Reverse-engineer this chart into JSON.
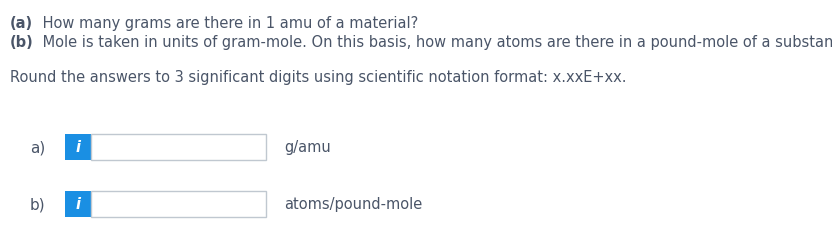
{
  "line_a_bold": "(a)",
  "line_a_text": " How many grams are there in 1 amu of a material?",
  "line_b_bold": "(b)",
  "line_b_text": " Mole is taken in units of gram-mole. On this basis, how many atoms are there in a pound-mole of a substance?",
  "instruction": "Round the answers to 3 significant digits using scientific notation format: x.xxE+xx.",
  "label_a": "a)",
  "label_b": "b)",
  "unit_a": "g/amu",
  "unit_b": "atoms/pound-mole",
  "text_color": "#4a5568",
  "blue_color": "#1a8fe3",
  "box_border_color": "#c0c8d0",
  "background_color": "#ffffff",
  "font_size_main": 10.5,
  "font_size_label": 11.0,
  "font_size_icon": 10.5
}
